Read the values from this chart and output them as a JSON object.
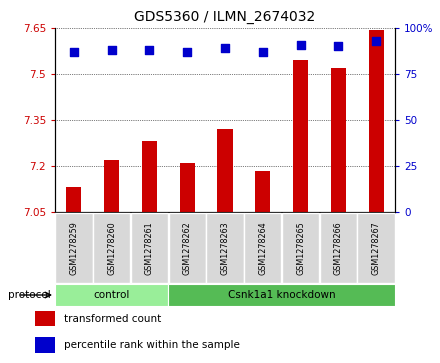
{
  "title": "GDS5360 / ILMN_2674032",
  "samples": [
    "GSM1278259",
    "GSM1278260",
    "GSM1278261",
    "GSM1278262",
    "GSM1278263",
    "GSM1278264",
    "GSM1278265",
    "GSM1278266",
    "GSM1278267"
  ],
  "bar_values": [
    7.13,
    7.22,
    7.28,
    7.21,
    7.32,
    7.185,
    7.545,
    7.52,
    7.645
  ],
  "percentile_values": [
    87,
    88,
    88,
    87,
    89,
    87,
    91,
    90,
    93
  ],
  "ylim_left": [
    7.05,
    7.65
  ],
  "ylim_right": [
    0,
    100
  ],
  "yticks_left": [
    7.05,
    7.2,
    7.35,
    7.5,
    7.65
  ],
  "yticks_right": [
    0,
    25,
    50,
    75,
    100
  ],
  "ytick_labels_right": [
    "0",
    "25",
    "50",
    "75",
    "100%"
  ],
  "bar_color": "#cc0000",
  "dot_color": "#0000cc",
  "bg_color": "#ffffff",
  "tick_color_left": "#cc0000",
  "tick_color_right": "#0000cc",
  "groups": [
    {
      "label": "control",
      "start": 0,
      "end": 3,
      "color": "#99ee99"
    },
    {
      "label": "Csnk1a1 knockdown",
      "start": 3,
      "end": 9,
      "color": "#55bb55"
    }
  ],
  "protocol_label": "protocol",
  "legend_items": [
    {
      "color": "#cc0000",
      "label": "transformed count"
    },
    {
      "color": "#0000cc",
      "label": "percentile rank within the sample"
    }
  ],
  "bar_bottom": 7.05,
  "dot_size": 28,
  "bar_width": 0.4
}
